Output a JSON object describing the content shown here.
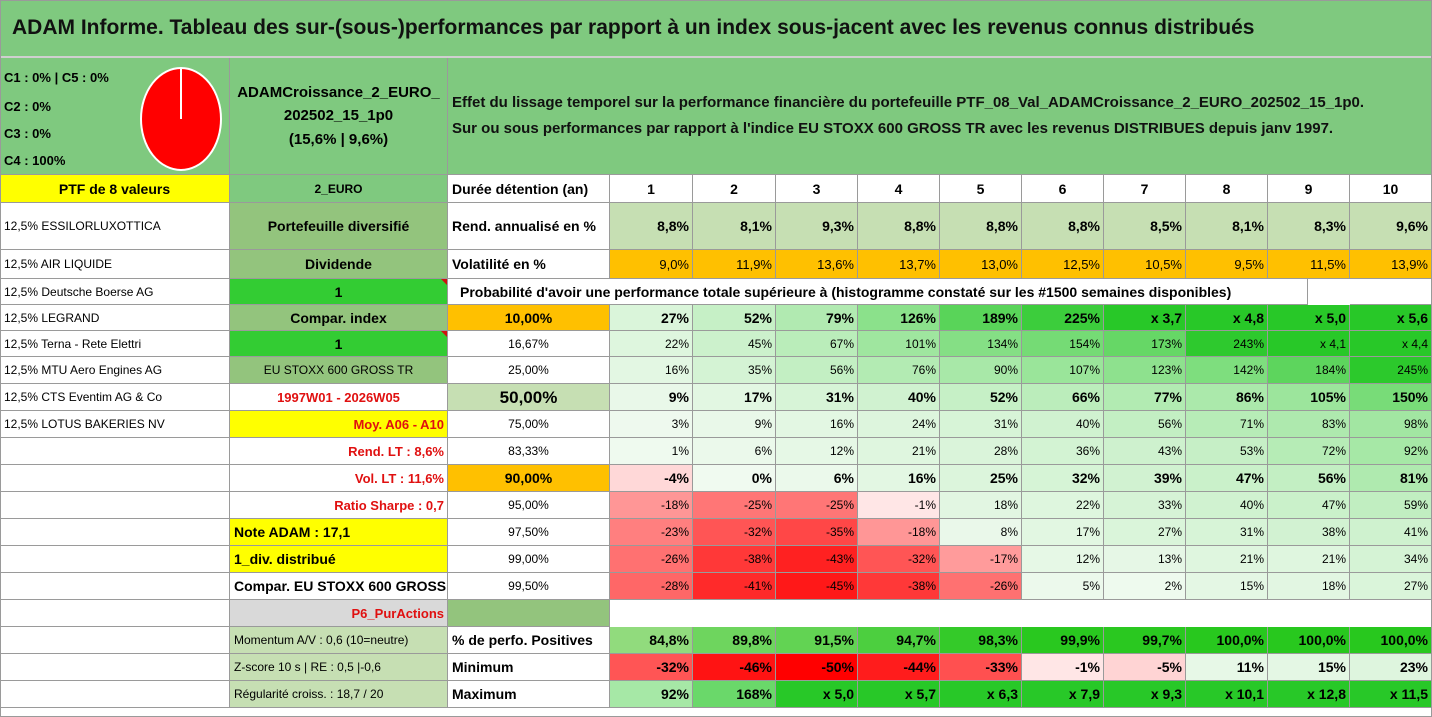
{
  "title": "ADAM Informe. Tableau des sur-(sous-)performances par rapport à un index sous-jacent avec les revenus connus distribués",
  "allocation": {
    "lines": [
      "C1 : 0% | C5 : 0%",
      "C2 : 0%",
      "C3 : 0%",
      "C4 : 100%"
    ],
    "pie": {
      "C1": 0,
      "C2": 0,
      "C3": 0,
      "C4": 100,
      "C5": 0,
      "color": "#ff0000"
    }
  },
  "portfolio": {
    "name_line1": "ADAMCroissance_2_EURO_",
    "name_line2": "202502_15_1p0",
    "name_line3": "(15,6% | 9,6%)"
  },
  "description": {
    "line1": "Effet du lissage temporel sur la performance financière du portefeuille PTF_08_Val_ADAMCroissance_2_EURO_202502_15_1p0.",
    "line2": "Sur ou sous performances par rapport à l'indice EU STOXX 600 GROSS TR avec les revenus DISTRIBUES depuis janv 1997."
  },
  "ptf_header": "PTF de 8 valeurs",
  "holdings": [
    "12,5% ESSILORLUXOTTICA",
    "12,5% AIR LIQUIDE",
    "12,5% Deutsche Boerse AG",
    "12,5% LEGRAND",
    "12,5% Terna - Rete Elettri",
    "12,5% MTU Aero Engines AG",
    "12,5% CTS Eventim AG & Co",
    "12,5% LOTUS BAKERIES NV"
  ],
  "info": {
    "euro": "2_EURO",
    "diversifie": "Portefeuille diversifié",
    "dividende": "Dividende",
    "dividende_val": "1",
    "compar_index": "Compar. index",
    "compar_val": "1",
    "index_name": "EU STOXX 600 GROSS TR",
    "period": "1997W01 - 2026W05",
    "moy": "Moy. A06 - A10",
    "rend_lt": "Rend. LT : 8,6%",
    "vol_lt": "Vol. LT : 11,6%",
    "sharpe": "Ratio Sharpe : 0,7",
    "note": "Note ADAM : 17,1",
    "div": "1_div. distribué",
    "compar_full": "Compar. EU STOXX 600 GROSS TR",
    "p6": "P6_PurActions",
    "momentum": "Momentum A/V : 0,6 (10=neutre)",
    "zscore": "Z-score 10 s | RE : 0,5 |-0,6",
    "regularite": "Régularité croiss. : 18,7 / 20"
  },
  "table": {
    "duree_label": "Durée détention (an)",
    "years": [
      "1",
      "2",
      "3",
      "4",
      "5",
      "6",
      "7",
      "8",
      "9",
      "10"
    ],
    "rend_label": "Rend. annualisé en %",
    "rend": [
      "8,8%",
      "8,1%",
      "9,3%",
      "8,8%",
      "8,8%",
      "8,8%",
      "8,5%",
      "8,1%",
      "8,3%",
      "9,6%"
    ],
    "vol_label": "Volatilité en %",
    "vol": [
      "9,0%",
      "11,9%",
      "13,6%",
      "13,7%",
      "13,0%",
      "12,5%",
      "10,5%",
      "9,5%",
      "11,5%",
      "13,9%"
    ],
    "prob_label": "Probabilité d'avoir une performance totale supérieure à (histogramme constaté sur les #1500 semaines disponibles)",
    "quantiles": [
      {
        "p": "10,00%",
        "v": [
          "27%",
          "52%",
          "79%",
          "126%",
          "189%",
          "225%",
          "x 3,7",
          "x 4,8",
          "x 5,0",
          "x 5,6"
        ]
      },
      {
        "p": "16,67%",
        "v": [
          "22%",
          "45%",
          "67%",
          "101%",
          "134%",
          "154%",
          "173%",
          "243%",
          "x 4,1",
          "x 4,4"
        ]
      },
      {
        "p": "25,00%",
        "v": [
          "16%",
          "35%",
          "56%",
          "76%",
          "90%",
          "107%",
          "123%",
          "142%",
          "184%",
          "245%"
        ]
      },
      {
        "p": "50,00%",
        "v": [
          "9%",
          "17%",
          "31%",
          "40%",
          "52%",
          "66%",
          "77%",
          "86%",
          "105%",
          "150%"
        ]
      },
      {
        "p": "75,00%",
        "v": [
          "3%",
          "9%",
          "16%",
          "24%",
          "31%",
          "40%",
          "56%",
          "71%",
          "83%",
          "98%"
        ]
      },
      {
        "p": "83,33%",
        "v": [
          "1%",
          "6%",
          "12%",
          "21%",
          "28%",
          "36%",
          "43%",
          "53%",
          "72%",
          "92%"
        ]
      },
      {
        "p": "90,00%",
        "v": [
          "-4%",
          "0%",
          "6%",
          "16%",
          "25%",
          "32%",
          "39%",
          "47%",
          "56%",
          "81%"
        ]
      },
      {
        "p": "95,00%",
        "v": [
          "-18%",
          "-25%",
          "-25%",
          "-1%",
          "18%",
          "22%",
          "33%",
          "40%",
          "47%",
          "59%"
        ]
      },
      {
        "p": "97,50%",
        "v": [
          "-23%",
          "-32%",
          "-35%",
          "-18%",
          "8%",
          "17%",
          "27%",
          "31%",
          "38%",
          "41%"
        ]
      },
      {
        "p": "99,00%",
        "v": [
          "-26%",
          "-38%",
          "-43%",
          "-32%",
          "-17%",
          "12%",
          "13%",
          "21%",
          "21%",
          "34%"
        ]
      },
      {
        "p": "99,50%",
        "v": [
          "-28%",
          "-41%",
          "-45%",
          "-38%",
          "-26%",
          "5%",
          "2%",
          "15%",
          "18%",
          "27%"
        ]
      }
    ],
    "pos_label": "% de perfo. Positives",
    "pos": [
      "84,8%",
      "89,8%",
      "91,5%",
      "94,7%",
      "98,3%",
      "99,9%",
      "99,7%",
      "100,0%",
      "100,0%",
      "100,0%"
    ],
    "min_label": "Minimum",
    "min": [
      "-32%",
      "-46%",
      "-50%",
      "-44%",
      "-33%",
      "-1%",
      "-5%",
      "11%",
      "15%",
      "23%"
    ],
    "max_label": "Maximum",
    "max": [
      "92%",
      "168%",
      "x 5,0",
      "x 5,7",
      "x 6,3",
      "x 7,9",
      "x 9,3",
      "x 10,1",
      "x 12,8",
      "x 11,5"
    ]
  },
  "colors": {
    "title_green": "#7fc97f",
    "yellow": "#ffff00",
    "orange": "#ffc000",
    "bright_green": "#33cc33",
    "light_green": "#c6dfb3",
    "mid_green": "#93c47d"
  }
}
